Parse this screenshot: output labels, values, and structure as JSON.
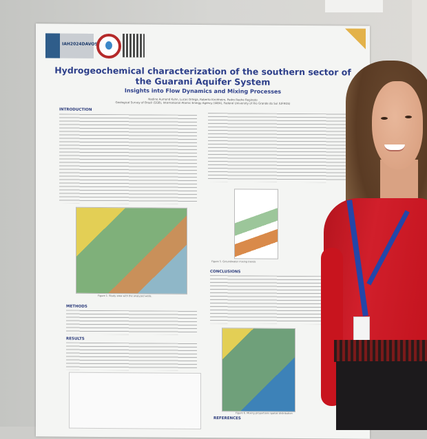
{
  "poster": {
    "title": "Hydrogeochemical characterization of the southern sector of the Guarani Aquifer System",
    "subtitle": "Insights into Flow Dynamics and Mixing Processes",
    "logo_text": "IAH2024DAVOS",
    "authors": "Nadine Aumond Kuhn, Lucas Ortega, Roberto Kirchheim, Pedro Roehe Reginato",
    "affiliations": "Geological Survey of Brazil (SGB), International Atomic Energy Agency (IAEA), Federal University of Rio Grande do Sul (UFRGS)",
    "sections": {
      "introduction": "INTRODUCTION",
      "methods": "METHODS",
      "results": "RESULTS",
      "conclusions": "CONCLUSIONS",
      "references": "REFERENCES"
    },
    "captions": {
      "fig1": "Figure 1. Study area with the analyzed wells.",
      "fig5": "Figure 5. Groundwater mixing trends",
      "fig6": "Figure 6. Mixing proportions spatial distribution"
    },
    "colors": {
      "title": "#2d3f8a",
      "accent": "#e3b24a"
    }
  }
}
